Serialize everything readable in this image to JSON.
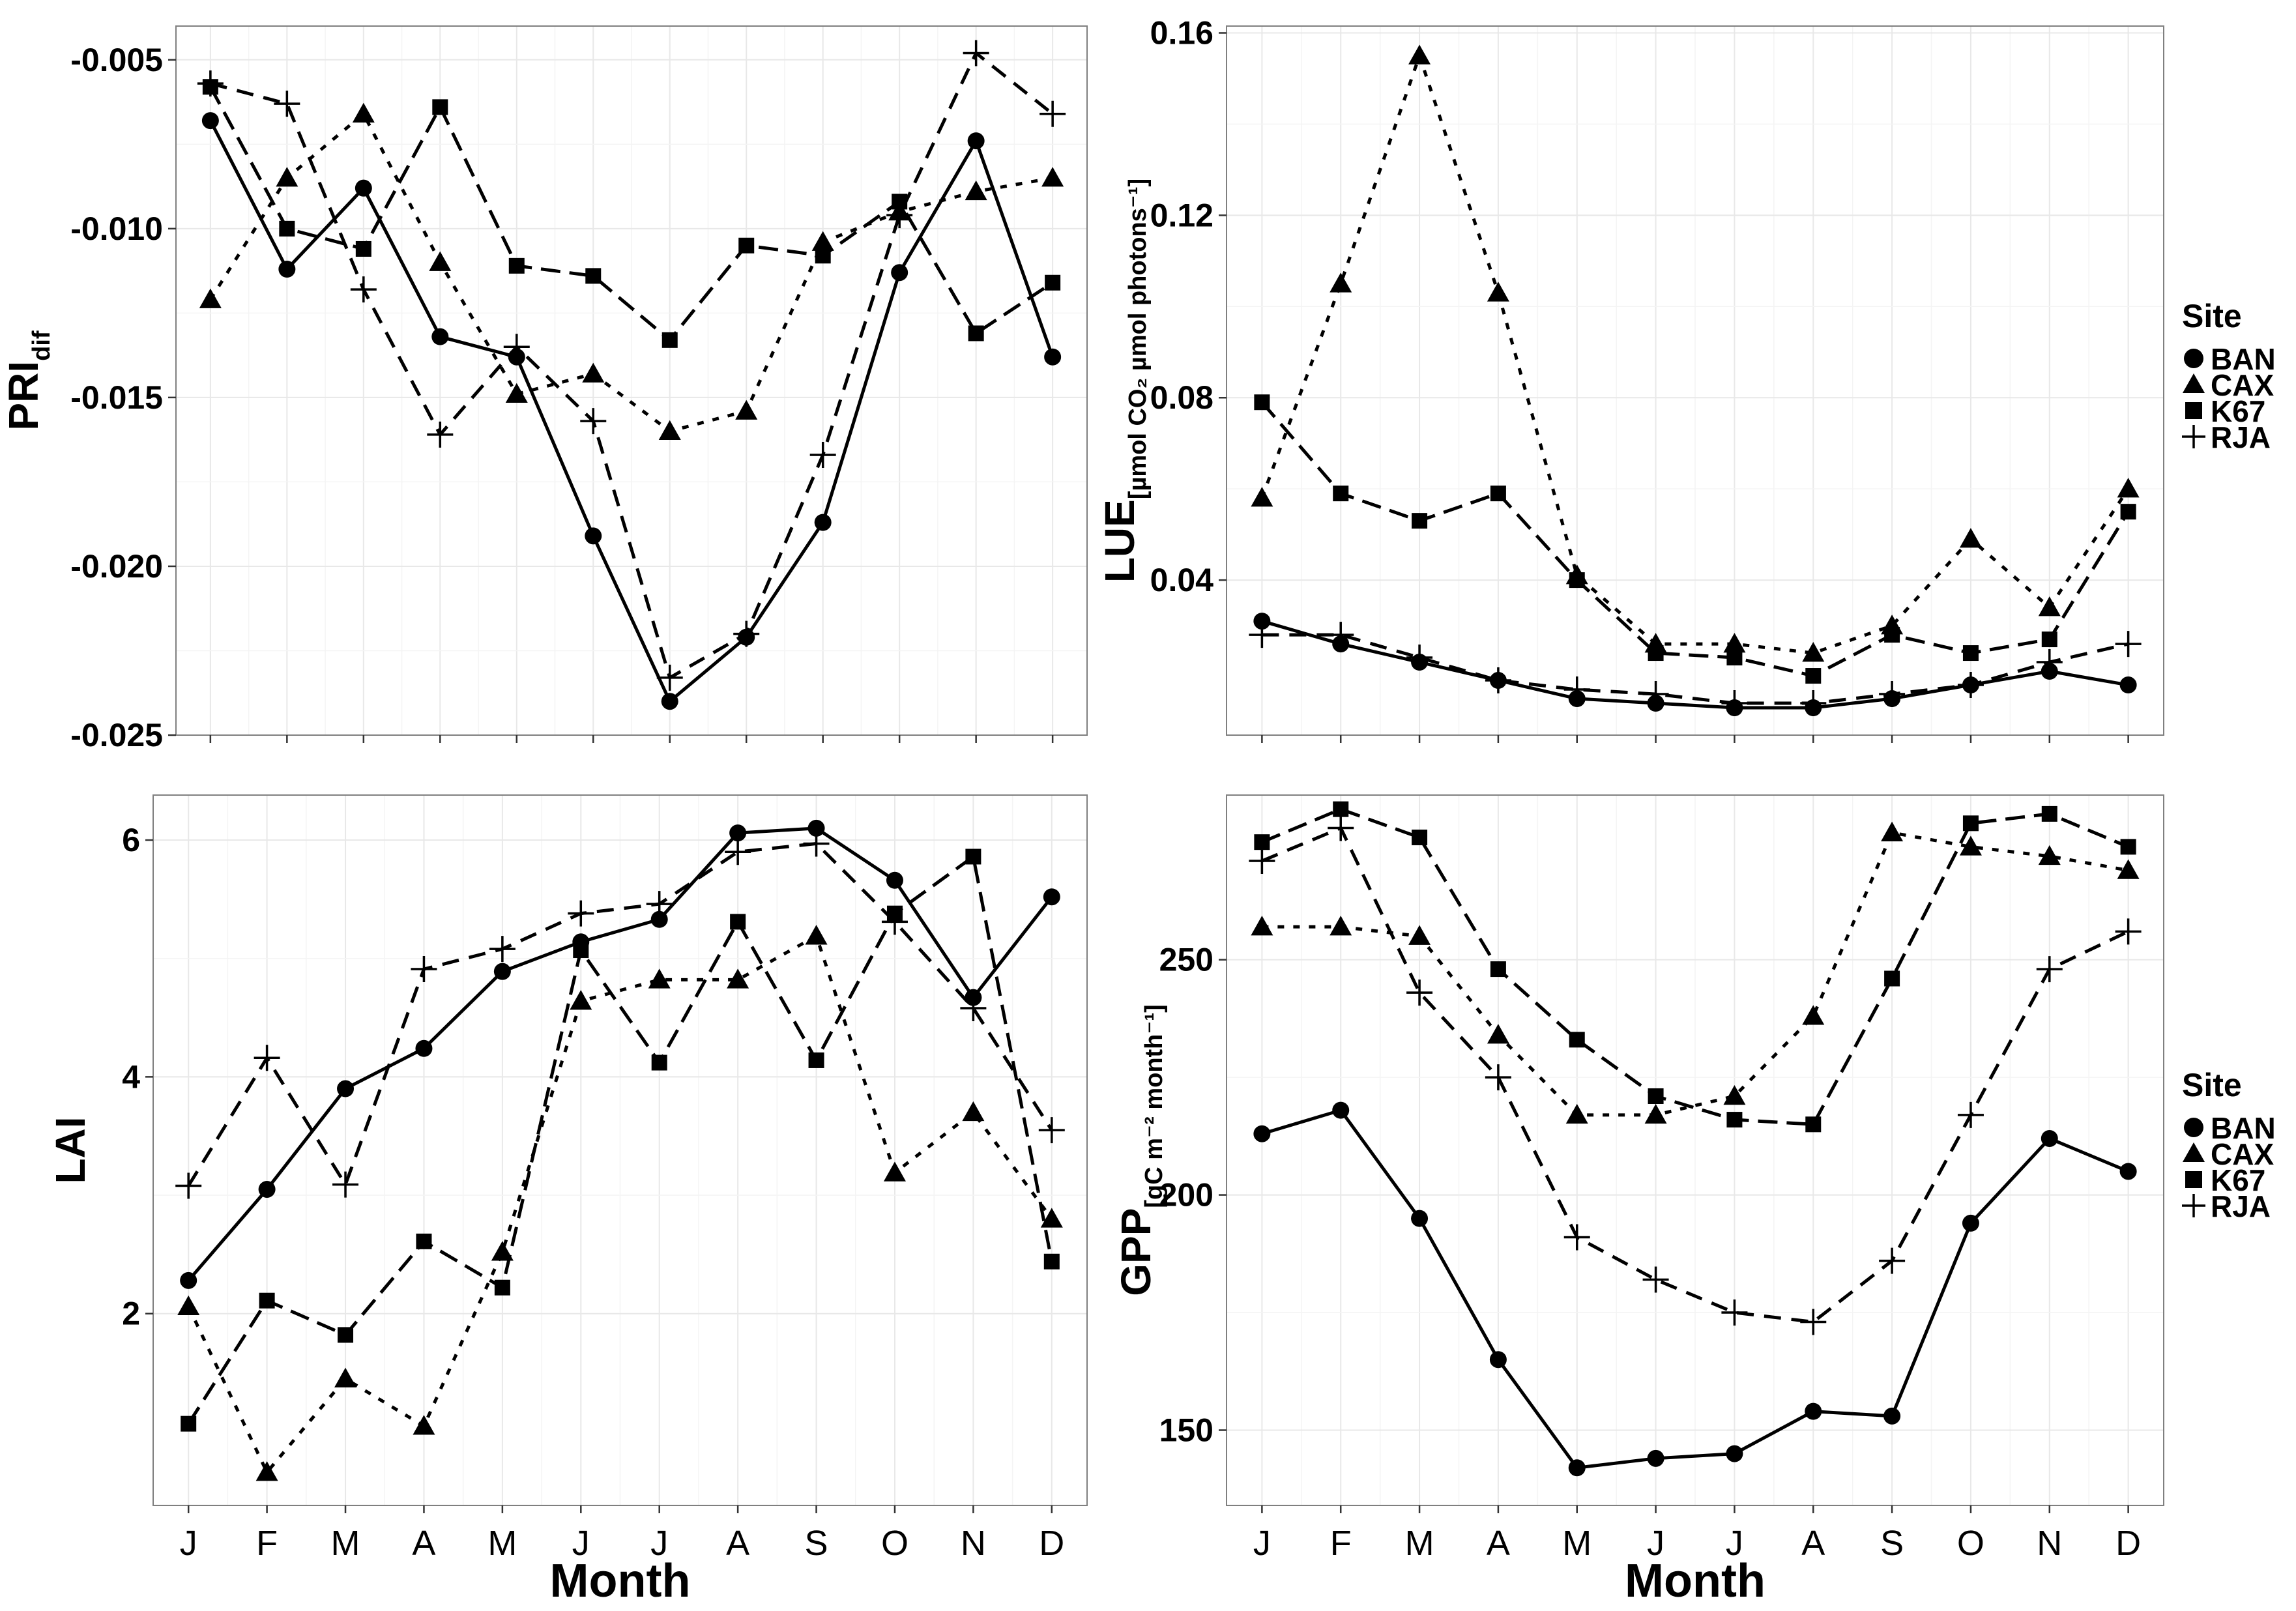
{
  "chart_data": [
    {
      "type": "line",
      "id": "pri",
      "ylabel": "PRI",
      "ylabel_sub": "dif",
      "xlabel": "",
      "categories": [
        "J",
        "F",
        "M",
        "A",
        "M",
        "J",
        "J",
        "A",
        "S",
        "O",
        "N",
        "D"
      ],
      "yticks": [
        -0.005,
        -0.01,
        -0.015,
        -0.02,
        -0.025
      ],
      "ytick_labels": [
        "-0.005",
        "-0.010",
        "-0.015",
        "-0.020",
        "-0.025"
      ],
      "ylim": [
        -0.025,
        -0.004
      ],
      "legend": false,
      "series": [
        {
          "name": "BAN",
          "values": [
            -0.0068,
            -0.0112,
            -0.0088,
            -0.0132,
            -0.0138,
            -0.0191,
            -0.024,
            -0.0221,
            -0.0187,
            -0.0113,
            -0.0074,
            -0.0138
          ]
        },
        {
          "name": "CAX",
          "values": [
            -0.0121,
            -0.0085,
            -0.0066,
            -0.011,
            -0.0149,
            -0.0143,
            -0.016,
            -0.0154,
            -0.0104,
            -0.0095,
            -0.0089,
            -0.0085
          ]
        },
        {
          "name": "K67",
          "values": [
            -0.0058,
            -0.01,
            -0.0106,
            -0.0064,
            -0.0111,
            -0.0114,
            -0.0133,
            -0.0105,
            -0.0108,
            -0.0092,
            -0.0131,
            -0.0116
          ]
        },
        {
          "name": "RJA",
          "values": [
            -0.0057,
            -0.0063,
            -0.0118,
            -0.0161,
            -0.0135,
            -0.0157,
            -0.0233,
            -0.022,
            -0.0167,
            -0.0096,
            -0.0048,
            -0.0066
          ]
        }
      ]
    },
    {
      "type": "line",
      "id": "lue",
      "ylabel": "LUE",
      "ylabel_sub": "[µmol CO₂ µmol photons⁻¹]",
      "xlabel": "",
      "categories": [
        "J",
        "F",
        "M",
        "A",
        "M",
        "J",
        "J",
        "A",
        "S",
        "O",
        "N",
        "D"
      ],
      "yticks": [
        0.04,
        0.08,
        0.12,
        0.16
      ],
      "ytick_labels": [
        "0.04",
        "0.08",
        "0.12",
        "0.16"
      ],
      "ylim": [
        0.006,
        0.1615
      ],
      "legend": true,
      "series": [
        {
          "name": "BAN",
          "values": [
            0.031,
            0.026,
            0.022,
            0.018,
            0.014,
            0.013,
            0.012,
            0.012,
            0.014,
            0.017,
            0.02,
            0.017
          ]
        },
        {
          "name": "CAX",
          "values": [
            0.058,
            0.105,
            0.155,
            0.103,
            0.041,
            0.026,
            0.026,
            0.024,
            0.03,
            0.049,
            0.034,
            0.06
          ]
        },
        {
          "name": "K67",
          "values": [
            0.079,
            0.059,
            0.053,
            0.059,
            0.04,
            0.024,
            0.023,
            0.019,
            0.028,
            0.024,
            0.027,
            0.055
          ]
        },
        {
          "name": "RJA",
          "values": [
            0.028,
            0.028,
            0.023,
            0.018,
            0.016,
            0.015,
            0.013,
            0.013,
            0.015,
            0.017,
            0.022,
            0.026
          ]
        }
      ]
    },
    {
      "type": "line",
      "id": "lai",
      "ylabel": "LAI",
      "ylabel_sub": "",
      "xlabel": "Month",
      "categories": [
        "J",
        "F",
        "M",
        "A",
        "M",
        "J",
        "J",
        "A",
        "S",
        "O",
        "N",
        "D"
      ],
      "yticks": [
        2,
        4,
        6
      ],
      "ytick_labels": [
        "2",
        "4",
        "6"
      ],
      "ylim": [
        0.38,
        6.38
      ],
      "legend": false,
      "series": [
        {
          "name": "BAN",
          "values": [
            2.28,
            3.05,
            3.9,
            4.24,
            4.89,
            5.14,
            5.33,
            6.06,
            6.1,
            5.66,
            4.67,
            5.52
          ]
        },
        {
          "name": "CAX",
          "values": [
            2.06,
            0.66,
            1.45,
            1.05,
            2.52,
            4.64,
            4.82,
            4.82,
            5.19,
            3.19,
            3.7,
            2.8
          ]
        },
        {
          "name": "K67",
          "values": [
            1.07,
            2.11,
            1.82,
            2.61,
            2.22,
            5.07,
            4.12,
            5.31,
            4.14,
            5.38,
            5.86,
            2.44
          ]
        },
        {
          "name": "RJA",
          "values": [
            3.08,
            4.16,
            3.09,
            4.91,
            5.08,
            5.38,
            5.46,
            5.9,
            5.97,
            5.31,
            4.58,
            3.55
          ]
        }
      ]
    },
    {
      "type": "line",
      "id": "gpp",
      "ylabel": "GPP",
      "ylabel_sub": "[gC m⁻² month⁻¹]",
      "xlabel": "Month",
      "categories": [
        "J",
        "F",
        "M",
        "A",
        "M",
        "J",
        "J",
        "A",
        "S",
        "O",
        "N",
        "D"
      ],
      "yticks": [
        150,
        200,
        250
      ],
      "ytick_labels": [
        "150",
        "200",
        "250"
      ],
      "ylim": [
        134,
        285
      ],
      "legend": true,
      "series": [
        {
          "name": "BAN",
          "values": [
            213,
            218,
            195,
            165,
            142,
            144,
            145,
            154,
            153,
            194,
            212,
            205
          ]
        },
        {
          "name": "CAX",
          "values": [
            257,
            257,
            255,
            234,
            217,
            217,
            221,
            238,
            277,
            274,
            272,
            269
          ]
        },
        {
          "name": "K67",
          "values": [
            275,
            282,
            276,
            248,
            233,
            221,
            216,
            215,
            246,
            279,
            281,
            274
          ]
        },
        {
          "name": "RJA",
          "values": [
            271,
            278,
            243,
            225,
            191,
            182,
            175,
            173,
            186,
            217,
            248,
            256
          ]
        }
      ]
    }
  ],
  "legend": {
    "title": "Site",
    "entries": [
      "BAN",
      "CAX",
      "K67",
      "RJA"
    ]
  },
  "x_axis_title": "Month"
}
